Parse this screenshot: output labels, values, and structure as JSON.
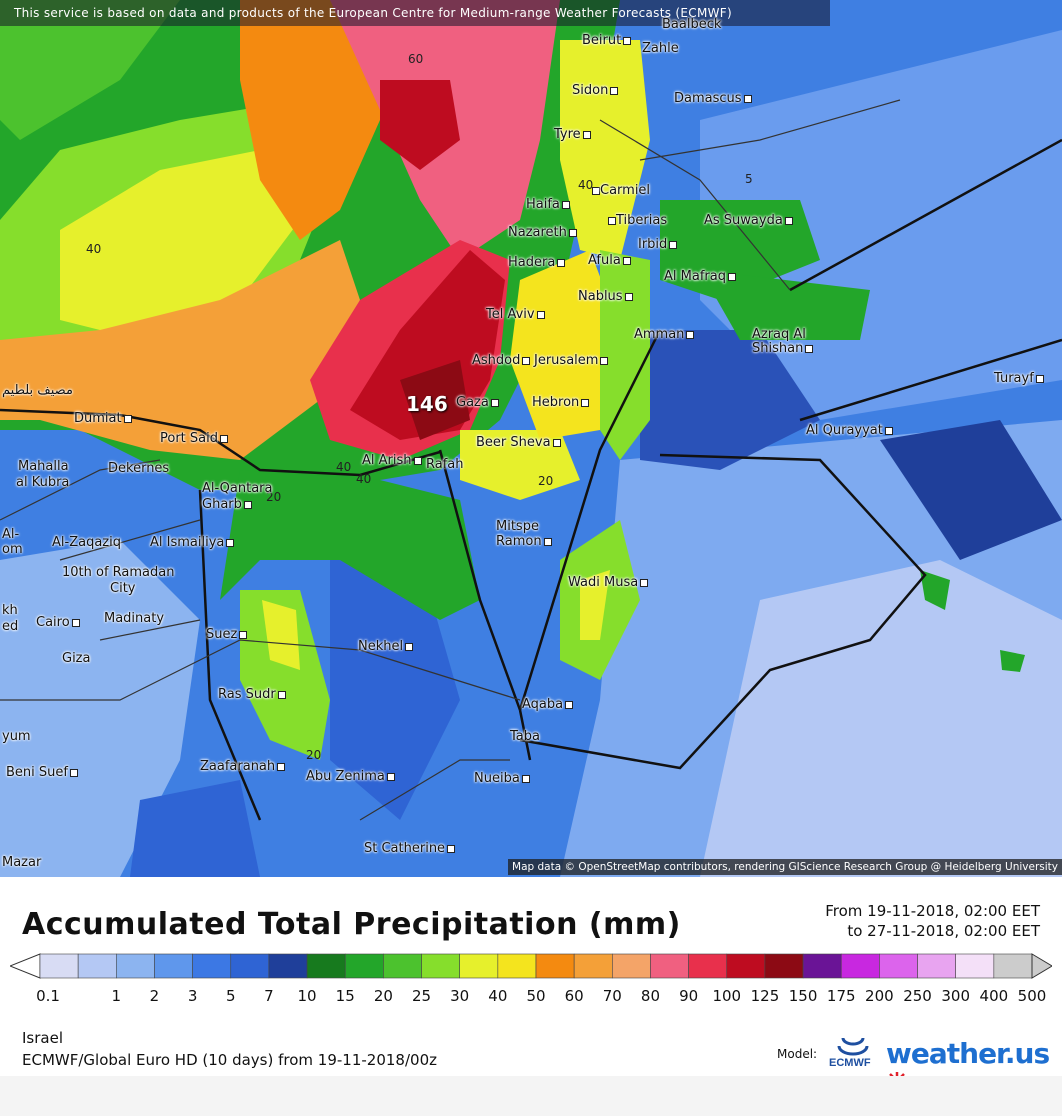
{
  "banner": "This service is based on data and products of the European Centre for Medium-range Weather Forecasts (ECMWF)",
  "attribution": "Map data © OpenStreetMap contributors, rendering GIScience Research Group @ Heidelberg University",
  "max_value": "146",
  "contour_labels": [
    "60",
    "40",
    "40",
    "20",
    "40",
    "20",
    "5",
    "40",
    "20"
  ],
  "cities": [
    "Beirut",
    "Zahle",
    "Baalbeck",
    "Sidon",
    "Damascus",
    "Tyre",
    "Carmiel",
    "Haifa",
    "Tiberias",
    "As Suwayda",
    "Nazareth",
    "Irbid",
    "Hadera",
    "Afula",
    "Al Mafraq",
    "Nablus",
    "Tel Aviv",
    "Amman",
    "Azraq Al",
    "Shishan",
    "Ashdod",
    "Jerusalem",
    "Turayf",
    "Gaza",
    "Hebron",
    "Al Qurayyat",
    "Dumiat",
    "Port Said",
    "Beer Sheva",
    "Mahalla",
    "al Kubra",
    "Dekernes",
    "Al Arish",
    "Rafah",
    "Al-Qantara",
    "Gharb",
    "Mitspe",
    "Ramon",
    "Al-",
    "om",
    "Al-Zaqaziq",
    "Al Ismailiya",
    "10th of Ramadan",
    "City",
    "Wadi Musa",
    "kh",
    "ed",
    "Cairo",
    "Madinaty",
    "Suez",
    "Giza",
    "Nekhel",
    "Ras Sudr",
    "Aqaba",
    "yum",
    "Taba",
    "Zaafaranah",
    "Abu Zenima",
    "Beni Suef",
    "Nueiba",
    "St Catherine",
    "Mazar",
    "مصيف بلطيم"
  ],
  "legend": {
    "title": "Accumulated Total Precipitation (mm)",
    "from": "From 19-11-2018, 02:00 EET",
    "to": "to 27-11-2018, 02:00 EET",
    "ticks": [
      "0.1",
      "1",
      "2",
      "3",
      "5",
      "7",
      "10",
      "15",
      "20",
      "25",
      "30",
      "40",
      "50",
      "60",
      "70",
      "80",
      "90",
      "100",
      "125",
      "150",
      "175",
      "200",
      "250",
      "300",
      "400",
      "500"
    ],
    "colors": [
      "#d8dcf4",
      "#b4c8f4",
      "#8cb4f0",
      "#5f97ec",
      "#3c78e4",
      "#2f64d4",
      "#1f3f9a",
      "#177a1e",
      "#23a62a",
      "#4cc22e",
      "#86de2c",
      "#e6f02c",
      "#f4e41e",
      "#f48a10",
      "#f4a038",
      "#f4a468",
      "#f06080",
      "#e8304c",
      "#be0c20",
      "#8c0a14",
      "#6a1496",
      "#c828e0",
      "#dc64ec",
      "#e8a4f0",
      "#f4e0f8",
      "#cccccc"
    ],
    "region": "Israel",
    "model_run": "ECMWF/Global Euro HD (10 days) from 19-11-2018/00z",
    "model_label": "Model:",
    "ecmwf_logo": "ECMWF",
    "brand": "weather.us"
  }
}
